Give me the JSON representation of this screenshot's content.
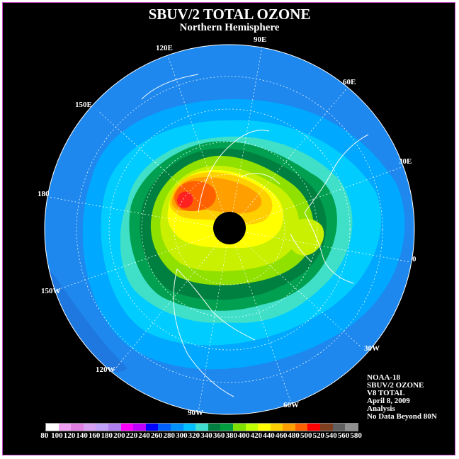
{
  "title": "SBUV/2 TOTAL OZONE",
  "subtitle": "Northern Hemisphere",
  "longitude_labels": {
    "e90": "90E",
    "e60": "60E",
    "e30": "30E",
    "lon0": "0",
    "w30": "30W",
    "w60": "60W",
    "w90": "90W",
    "w120": "120W",
    "w150": "150W",
    "lon180": "180",
    "e150": "150E",
    "e120": "120E"
  },
  "info": {
    "satellite": "NOAA-18",
    "product": "SBUV/2 OZONE",
    "version": "V8 TOTAL",
    "date": "April 8, 2009",
    "type": "Analysis",
    "note": "No Data Beyond 80N"
  },
  "colorbar": {
    "ticks": [
      "80",
      "100",
      "120",
      "140",
      "160",
      "180",
      "200",
      "220",
      "240",
      "260",
      "280",
      "300",
      "320",
      "340",
      "360",
      "380",
      "400",
      "420",
      "440",
      "460",
      "480",
      "500",
      "520",
      "540",
      "560",
      "580"
    ],
    "colors": [
      "#ffffff",
      "#f0a0f0",
      "#e080e0",
      "#d8a0f0",
      "#c0a0f8",
      "#b080f0",
      "#ff00ff",
      "#c000ff",
      "#0000ff",
      "#0060ff",
      "#0090ff",
      "#00c0ff",
      "#40e0d0",
      "#008040",
      "#00a040",
      "#80e000",
      "#c0ff00",
      "#ffff00",
      "#ffd000",
      "#ffa000",
      "#ff6000",
      "#ff0000",
      "#804020",
      "#606060",
      "#909090"
    ]
  },
  "ozone_colors": {
    "ocean_far": "#1e88ee",
    "band_260": "#0090ff",
    "band_280": "#00b0ff",
    "band_300": "#00d0ff",
    "band_320": "#40e0c8",
    "band_340": "#00a050",
    "band_360": "#008040",
    "band_380": "#90e000",
    "band_400": "#c8f000",
    "band_420": "#ffff00",
    "band_440": "#ffd000",
    "band_460": "#ffa000",
    "band_480": "#ff6000",
    "band_500": "#ff2020"
  }
}
